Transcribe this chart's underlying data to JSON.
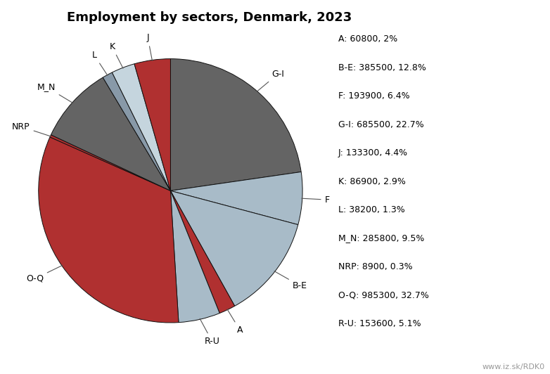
{
  "title": "Employment by sectors, Denmark, 2023",
  "sectors": [
    {
      "label": "G-I",
      "value": 685500,
      "color": "#646464"
    },
    {
      "label": "F",
      "value": 193900,
      "color": "#a8bbc8"
    },
    {
      "label": "B-E",
      "value": 385500,
      "color": "#a8bbc8"
    },
    {
      "label": "A",
      "value": 60800,
      "color": "#b03030"
    },
    {
      "label": "R-U",
      "value": 153600,
      "color": "#a8bbc8"
    },
    {
      "label": "O-Q",
      "value": 985300,
      "color": "#b03030"
    },
    {
      "label": "NRP",
      "value": 8900,
      "color": "#b03030"
    },
    {
      "label": "M_N",
      "value": 285800,
      "color": "#646464"
    },
    {
      "label": "L",
      "value": 38200,
      "color": "#8899a8"
    },
    {
      "label": "K",
      "value": 86900,
      "color": "#c5d5de"
    },
    {
      "label": "J",
      "value": 133300,
      "color": "#b03030"
    }
  ],
  "legend_entries": [
    "A: 60800, 2%",
    "B-E: 385500, 12.8%",
    "F: 193900, 6.4%",
    "G-I: 685500, 22.7%",
    "J: 133300, 4.4%",
    "K: 86900, 2.9%",
    "L: 38200, 1.3%",
    "M_N: 285800, 9.5%",
    "NRP: 8900, 0.3%",
    "O-Q: 985300, 32.7%",
    "R-U: 153600, 5.1%"
  ],
  "background_color": "#ffffff",
  "watermark": "www.iz.sk/RDK0",
  "title_fontsize": 13,
  "label_fontsize": 9,
  "legend_fontsize": 9
}
